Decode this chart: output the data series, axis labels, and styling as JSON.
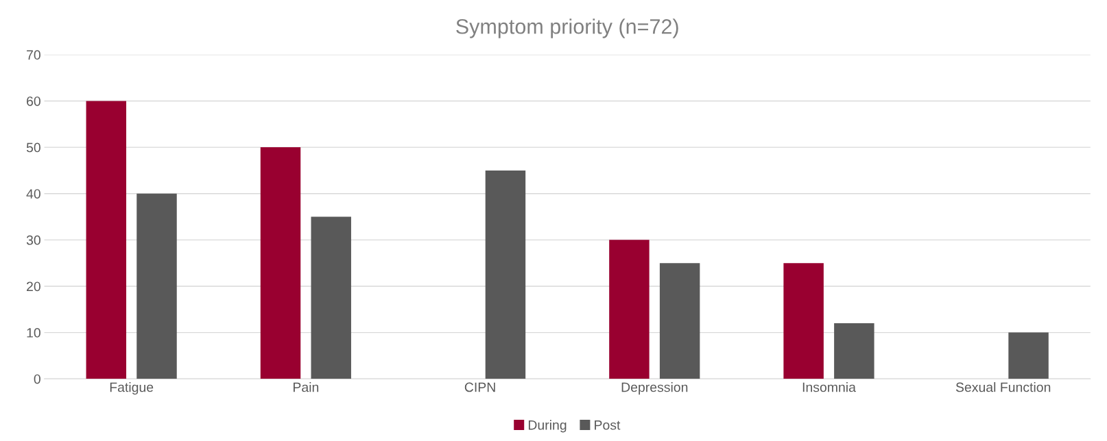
{
  "chart_data": {
    "type": "bar",
    "title": "Symptom priority (n=72)",
    "categories": [
      "Fatigue",
      "Pain",
      "CIPN",
      "Depression",
      "Insomnia",
      "Sexual Function"
    ],
    "series": [
      {
        "name": "During",
        "color": "#990030",
        "values": [
          60,
          50,
          null,
          30,
          25,
          null
        ]
      },
      {
        "name": "Post",
        "color": "#595959",
        "values": [
          40,
          35,
          45,
          25,
          12,
          10
        ]
      }
    ],
    "ylim": [
      0,
      70
    ],
    "yticks": [
      0,
      10,
      20,
      30,
      40,
      50,
      60,
      70
    ],
    "grid": "y",
    "legend": "bottom"
  }
}
